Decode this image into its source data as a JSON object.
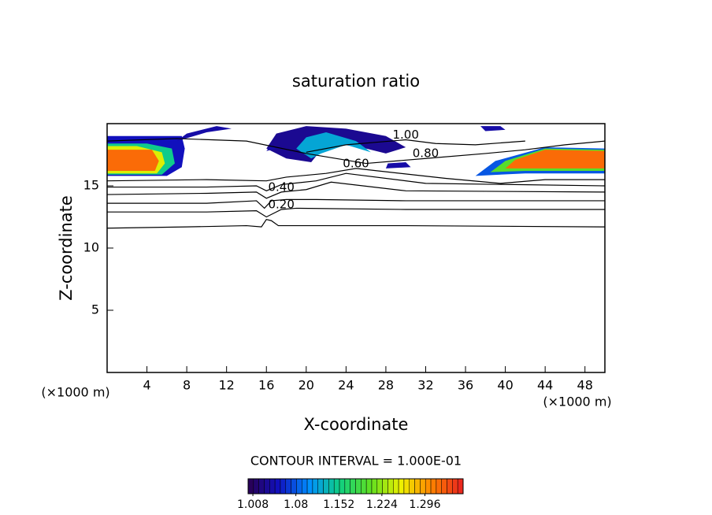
{
  "chart_data": {
    "type": "contour",
    "title": "saturation ratio",
    "xlabel": "X-coordinate",
    "ylabel": "Z-coordinate",
    "xunit": "(×1000 m)",
    "yunit": "(×1000 m)",
    "annotation": "CONTOUR INTERVAL = 1.000E-01",
    "xlim": [
      0,
      50
    ],
    "ylim": [
      0,
      20
    ],
    "xticks": [
      4,
      8,
      12,
      16,
      20,
      24,
      28,
      32,
      36,
      40,
      44,
      48
    ],
    "yticks": [
      5,
      10,
      15
    ],
    "line_color": "#000000",
    "contours": [
      {
        "level": 0.1,
        "x": [
          0,
          8,
          14,
          15.5,
          16,
          16.5,
          17.2,
          20,
          30,
          50
        ],
        "y": [
          11.6,
          11.7,
          11.8,
          11.7,
          12.3,
          12.2,
          11.8,
          11.8,
          11.8,
          11.7
        ]
      },
      {
        "level": 0.2,
        "label": "0.20",
        "x": [
          0,
          10,
          15,
          16,
          17.5,
          19,
          30,
          50
        ],
        "y": [
          12.9,
          12.9,
          13.0,
          12.5,
          13.1,
          13.2,
          13.1,
          13.1
        ]
      },
      {
        "level": 0.3,
        "x": [
          0,
          10,
          15,
          15.8,
          16.5,
          18,
          21,
          30,
          50
        ],
        "y": [
          13.6,
          13.6,
          13.8,
          13.2,
          13.8,
          13.9,
          13.9,
          13.8,
          13.8
        ]
      },
      {
        "level": 0.4,
        "label": "0.40",
        "x": [
          0,
          10,
          15,
          16,
          17.5,
          20,
          22.5,
          30,
          50
        ],
        "y": [
          14.3,
          14.4,
          14.5,
          14.0,
          14.5,
          14.7,
          15.3,
          14.6,
          14.5
        ]
      },
      {
        "level": 0.5,
        "x": [
          0,
          10,
          15,
          16,
          17.5,
          21,
          24,
          32,
          50
        ],
        "y": [
          14.9,
          14.9,
          15.0,
          14.6,
          15.1,
          15.4,
          16.0,
          15.2,
          15.0
        ]
      },
      {
        "level": 0.6,
        "label": "0.60",
        "x": [
          0,
          10,
          16,
          18,
          22,
          25,
          34,
          39.5,
          44,
          50
        ],
        "y": [
          15.4,
          15.5,
          15.4,
          15.7,
          16.0,
          16.4,
          15.6,
          15.2,
          15.5,
          15.5
        ]
      },
      {
        "level": 0.8,
        "label": "0.80",
        "x": [
          0,
          7,
          14,
          20,
          26,
          32,
          38,
          42,
          46,
          50
        ],
        "y": [
          18.6,
          18.8,
          18.6,
          17.6,
          16.8,
          17.2,
          17.6,
          17.9,
          18.3,
          18.6
        ]
      },
      {
        "level": 1.0,
        "label": "1.00",
        "x": [
          20,
          24,
          27,
          30,
          33,
          37,
          42
        ],
        "y": [
          17.7,
          18.3,
          18.5,
          18.7,
          18.4,
          18.3,
          18.6
        ]
      }
    ],
    "colorbar_lim": [
      1.0,
      1.36
    ],
    "colorbar_ticks": [
      1.008,
      1.08,
      1.152,
      1.224,
      1.296
    ],
    "colormap": [
      "#2a0050",
      "#1010c0",
      "#0090ff",
      "#10d080",
      "#60e020",
      "#f0f000",
      "#ff8000",
      "#e82020"
    ],
    "regions": [
      {
        "value": 1.05,
        "x": [
          0,
          6,
          7.5,
          7.8,
          7.5,
          0
        ],
        "y": [
          15.8,
          15.8,
          16.5,
          18.0,
          19.0,
          19.0
        ]
      },
      {
        "value": 1.15,
        "x": [
          0,
          5.5,
          6.8,
          6.5,
          4,
          0
        ],
        "y": [
          15.9,
          15.9,
          16.8,
          18.0,
          18.4,
          18.4
        ]
      },
      {
        "value": 1.25,
        "x": [
          0,
          5,
          5.8,
          5.5,
          3,
          0
        ],
        "y": [
          16.0,
          16.0,
          16.8,
          17.7,
          18.2,
          18.2
        ]
      },
      {
        "value": 1.32,
        "x": [
          0,
          4.8,
          5.2,
          4.5,
          0
        ],
        "y": [
          16.2,
          16.2,
          17.0,
          17.9,
          17.9
        ]
      },
      {
        "value": 1.03,
        "x": [
          16,
          18,
          20.5,
          22,
          25,
          28,
          30,
          28,
          24,
          20,
          17
        ],
        "y": [
          18.0,
          17.2,
          16.9,
          18.4,
          18.2,
          17.6,
          18.1,
          19.0,
          19.6,
          19.8,
          19.2
        ]
      },
      {
        "value": 1.12,
        "x": [
          19,
          20.5,
          21.5,
          24,
          26.5,
          25,
          22,
          20
        ],
        "y": [
          18.0,
          17.2,
          17.6,
          18.3,
          17.7,
          18.6,
          19.3,
          18.9
        ]
      },
      {
        "value": 1.04,
        "x": [
          7,
          10,
          12.5,
          11,
          8
        ],
        "y": [
          18.6,
          19.3,
          19.6,
          19.8,
          19.2
        ]
      },
      {
        "value": 1.04,
        "x": [
          38,
          40,
          39.5,
          37.5
        ],
        "y": [
          19.4,
          19.5,
          19.8,
          19.8
        ]
      },
      {
        "value": 1.04,
        "x": [
          28,
          30.5,
          30,
          28.2
        ],
        "y": [
          16.4,
          16.5,
          16.9,
          16.8
        ]
      },
      {
        "value": 1.04,
        "x": [
          16,
          17,
          16.5
        ],
        "y": [
          17.8,
          18.0,
          18.3
        ]
      },
      {
        "value": 1.08,
        "x": [
          37,
          42,
          50,
          50,
          44,
          39
        ],
        "y": [
          15.8,
          16.0,
          16.0,
          18.0,
          18.1,
          17.0
        ]
      },
      {
        "value": 1.2,
        "x": [
          38.5,
          42,
          50,
          50,
          44,
          40
        ],
        "y": [
          16.1,
          16.2,
          16.2,
          17.9,
          18.0,
          17.0
        ]
      },
      {
        "value": 1.32,
        "x": [
          40,
          43,
          50,
          50,
          44,
          41
        ],
        "y": [
          16.4,
          16.4,
          16.4,
          17.8,
          17.9,
          17.1
        ]
      }
    ]
  }
}
